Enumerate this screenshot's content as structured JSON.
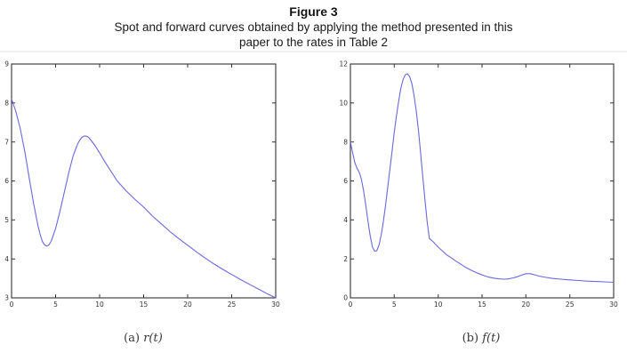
{
  "figure": {
    "title": "Figure 3",
    "subtitle_line1": "Spot and forward curves obtained by applying the method presented in this",
    "subtitle_line2": "paper to the rates in Table 2"
  },
  "colors": {
    "curve": "#5b5bdc",
    "axis": "#333333",
    "tick_text": "#333333"
  },
  "chart_data": [
    {
      "type": "line",
      "name": "spot-curve",
      "caption_prefix": "(a)",
      "caption_math": "r(t)",
      "xlim": [
        0,
        30
      ],
      "ylim": [
        3,
        9
      ],
      "xticks": [
        0,
        5,
        10,
        15,
        20,
        25,
        30
      ],
      "yticks": [
        3,
        4,
        5,
        6,
        7,
        8,
        9
      ],
      "grid": false,
      "legend": null,
      "line_color": "#5b5bdc",
      "x": [
        0,
        0.5,
        1,
        1.5,
        2,
        2.5,
        3,
        3.25,
        3.5,
        3.75,
        4,
        4.25,
        4.5,
        5,
        5.5,
        6,
        6.5,
        7,
        7.5,
        7.75,
        8,
        8.25,
        8.5,
        8.75,
        9,
        9.5,
        10,
        10.5,
        11,
        12,
        13,
        14,
        15,
        16,
        17,
        18,
        19,
        20,
        21,
        22,
        23,
        24,
        25,
        26,
        27,
        28,
        29,
        30
      ],
      "y": [
        8.1,
        7.78,
        7.33,
        6.75,
        6.08,
        5.42,
        4.85,
        4.62,
        4.45,
        4.36,
        4.33,
        4.36,
        4.45,
        4.78,
        5.22,
        5.72,
        6.22,
        6.65,
        6.95,
        7.05,
        7.12,
        7.15,
        7.15,
        7.12,
        7.05,
        6.9,
        6.72,
        6.53,
        6.35,
        6.0,
        5.75,
        5.53,
        5.33,
        5.1,
        4.9,
        4.7,
        4.52,
        4.35,
        4.18,
        4.02,
        3.87,
        3.73,
        3.6,
        3.47,
        3.35,
        3.23,
        3.11,
        3.0
      ]
    },
    {
      "type": "line",
      "name": "forward-curve",
      "caption_prefix": "(b)",
      "caption_math": "f(t)",
      "xlim": [
        0,
        30
      ],
      "ylim": [
        0,
        12
      ],
      "xticks": [
        0,
        5,
        10,
        15,
        20,
        25,
        30
      ],
      "yticks": [
        0,
        2,
        4,
        6,
        8,
        10,
        12
      ],
      "grid": false,
      "legend": null,
      "line_color": "#5b5bdc",
      "x": [
        0,
        0.25,
        0.5,
        0.75,
        1,
        1.25,
        1.5,
        1.75,
        2,
        2.25,
        2.5,
        2.75,
        3,
        3.25,
        3.5,
        3.75,
        4,
        4.25,
        4.5,
        4.75,
        5,
        5.25,
        5.5,
        5.75,
        6,
        6.25,
        6.5,
        6.75,
        7,
        7.25,
        7.5,
        7.75,
        8,
        8.25,
        8.5,
        8.75,
        9,
        9.5,
        10,
        10.5,
        11,
        11.5,
        12,
        12.5,
        13,
        13.5,
        14,
        14.5,
        15,
        15.5,
        16,
        16.5,
        17,
        17.5,
        18,
        18.5,
        19,
        19.5,
        20,
        20.5,
        21,
        21.5,
        22,
        23,
        24,
        25,
        26,
        27,
        28,
        29,
        30
      ],
      "y": [
        8.0,
        7.45,
        6.95,
        6.65,
        6.45,
        6.1,
        5.5,
        4.75,
        3.95,
        3.2,
        2.62,
        2.4,
        2.42,
        2.7,
        3.2,
        3.9,
        4.75,
        5.65,
        6.6,
        7.55,
        8.5,
        9.35,
        10.1,
        10.75,
        11.2,
        11.45,
        11.5,
        11.35,
        11.0,
        10.4,
        9.6,
        8.6,
        7.45,
        6.2,
        5.0,
        3.9,
        3.05,
        2.85,
        2.6,
        2.4,
        2.2,
        2.05,
        1.9,
        1.75,
        1.6,
        1.48,
        1.37,
        1.27,
        1.18,
        1.1,
        1.04,
        1.0,
        0.97,
        0.96,
        0.97,
        1.02,
        1.08,
        1.17,
        1.24,
        1.24,
        1.18,
        1.12,
        1.07,
        1.0,
        0.96,
        0.92,
        0.89,
        0.86,
        0.84,
        0.82,
        0.8
      ]
    }
  ]
}
